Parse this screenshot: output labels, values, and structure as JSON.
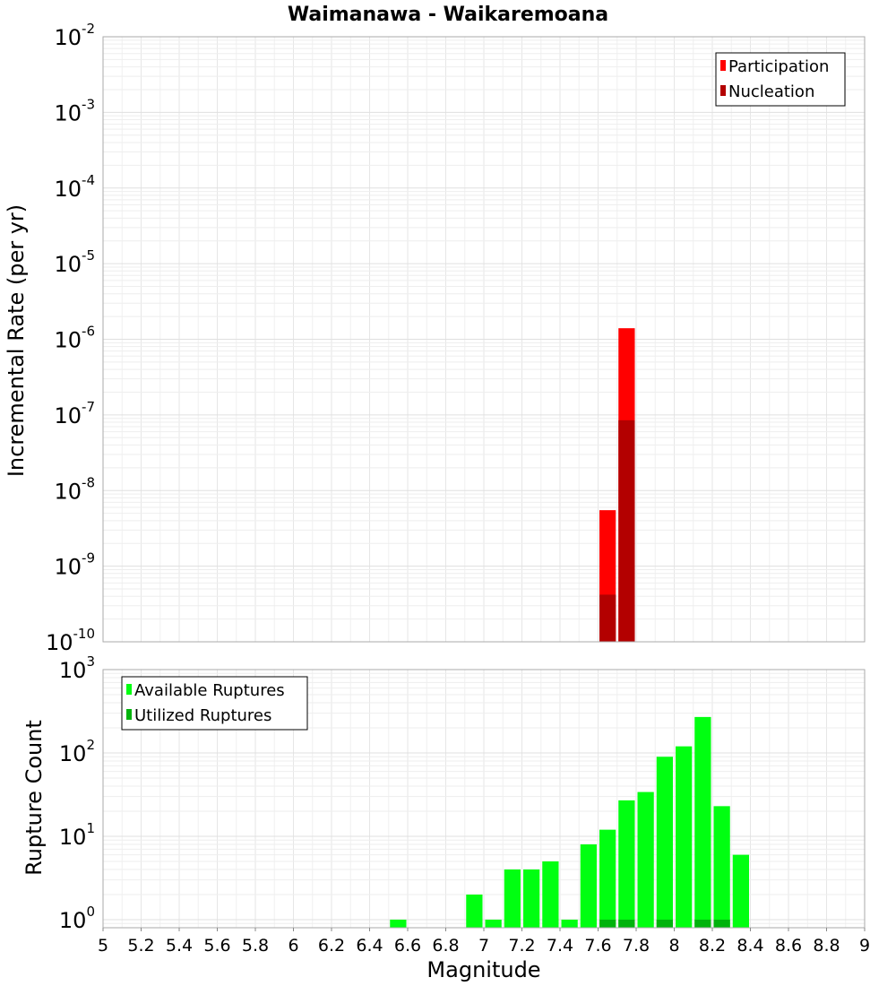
{
  "chart_data": [
    {
      "type": "bar",
      "title": "Waimanawa - Waikaremoana",
      "xlabel": "",
      "ylabel": "Incremental Rate (per yr)",
      "yscale": "log",
      "ylim": [
        1e-10,
        0.01
      ],
      "xlim": [
        5,
        9
      ],
      "bar_width": 0.1,
      "grid": true,
      "legend_position": "top-right",
      "y_ticks": [
        {
          "base": "10",
          "exp": "-10"
        },
        {
          "base": "10",
          "exp": "-9"
        },
        {
          "base": "10",
          "exp": "-8"
        },
        {
          "base": "10",
          "exp": "-7"
        },
        {
          "base": "10",
          "exp": "-6"
        },
        {
          "base": "10",
          "exp": "-5"
        },
        {
          "base": "10",
          "exp": "-4"
        },
        {
          "base": "10",
          "exp": "-3"
        },
        {
          "base": "10",
          "exp": "-2"
        }
      ],
      "series": [
        {
          "name": "Participation",
          "color": "#ff0000",
          "x": [
            7.65,
            7.75
          ],
          "values": [
            5.5e-09,
            1.4e-06
          ]
        },
        {
          "name": "Nucleation",
          "color": "#b30000",
          "x": [
            7.65,
            7.75
          ],
          "values": [
            4.2e-10,
            8.5e-08
          ]
        }
      ]
    },
    {
      "type": "bar",
      "title": "",
      "xlabel": "Magnitude",
      "ylabel": "Rupture Count",
      "yscale": "log",
      "ylim": [
        0.8,
        1000
      ],
      "xlim": [
        5,
        9
      ],
      "bar_width": 0.1,
      "grid": true,
      "legend_position": "top-left",
      "x_tick_labels": [
        "5",
        "5.2",
        "5.4",
        "5.6",
        "5.8",
        "6",
        "6.2",
        "6.4",
        "6.6",
        "6.8",
        "7",
        "7.2",
        "7.4",
        "7.6",
        "7.8",
        "8",
        "8.2",
        "8.4",
        "8.6",
        "8.8",
        "9"
      ],
      "y_ticks": [
        {
          "base": "10",
          "exp": "0"
        },
        {
          "base": "10",
          "exp": "1"
        },
        {
          "base": "10",
          "exp": "2"
        },
        {
          "base": "10",
          "exp": "3"
        }
      ],
      "series": [
        {
          "name": "Available Ruptures",
          "color": "#00ff11",
          "x": [
            6.55,
            6.95,
            7.05,
            7.15,
            7.25,
            7.35,
            7.45,
            7.55,
            7.65,
            7.75,
            7.85,
            7.95,
            8.05,
            8.15,
            8.25,
            8.35
          ],
          "values": [
            1,
            2,
            1,
            4,
            4,
            5,
            1,
            8,
            12,
            27,
            34,
            90,
            120,
            270,
            23,
            6
          ]
        },
        {
          "name": "Utilized Ruptures",
          "color": "#00b30c",
          "x": [
            7.65,
            7.75,
            7.95,
            8.15,
            8.25
          ],
          "values": [
            1,
            1,
            1,
            1,
            1
          ]
        }
      ]
    }
  ]
}
